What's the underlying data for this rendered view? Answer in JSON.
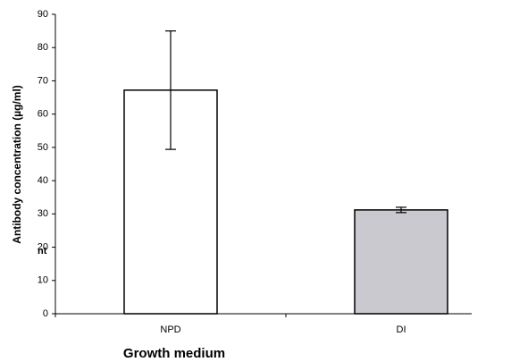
{
  "chart_data": {
    "type": "bar",
    "categories": [
      "NPD",
      "DI"
    ],
    "series": [
      {
        "values": [
          67.2,
          31.2
        ],
        "errors": [
          17.8,
          0.8
        ],
        "colors": [
          "#ffffff",
          "#c9c9cf"
        ]
      }
    ],
    "ylim": [
      0,
      90
    ],
    "yticks": [
      0,
      10,
      20,
      30,
      40,
      50,
      60,
      70,
      80,
      90
    ],
    "xlabel": "Growth medium",
    "ylabel": "Antibody concentration (µg/ml)",
    "annotation": "nt"
  }
}
